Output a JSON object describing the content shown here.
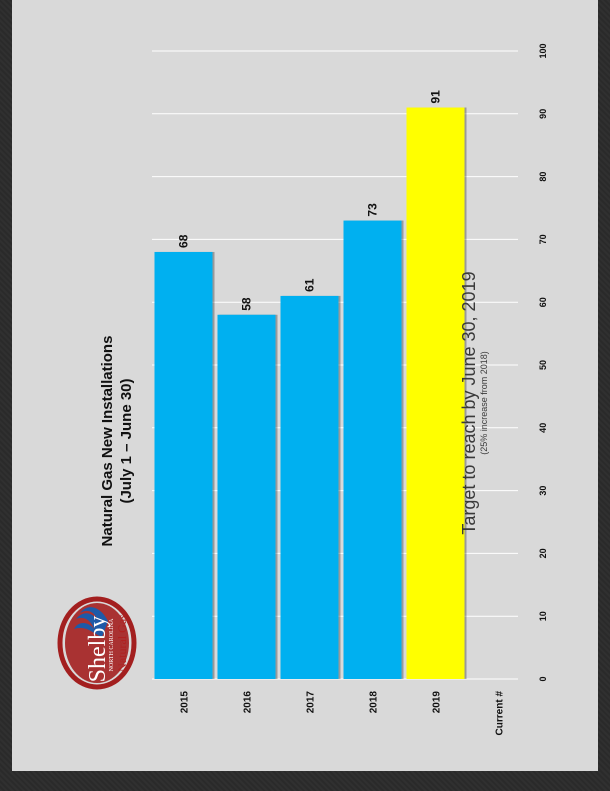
{
  "logo": {
    "brand": "Shelby",
    "state": "NORTH CAROLINA",
    "product": "Natural Gas",
    "colors": {
      "ring": "#a31f1f",
      "flame": "#1e5aa8"
    }
  },
  "colors": {
    "bar": "#00b0f0",
    "target_bar": "#ffff00",
    "slide_background": "#d9d9d9",
    "frame_background": "#2b2b2b"
  },
  "chart_data": {
    "type": "bar",
    "orientation": "horizontal",
    "title": "Natural Gas New Installations",
    "subtitle": "(July 1 – June 30)",
    "categories": [
      "2015",
      "2016",
      "2017",
      "2018",
      "2019",
      "Current #"
    ],
    "values": [
      68,
      58,
      61,
      73,
      91,
      null
    ],
    "data_labels": [
      "68",
      "58",
      "61",
      "73",
      "91",
      ""
    ],
    "xlim": [
      0,
      100
    ],
    "ticks": [
      0,
      10,
      20,
      30,
      40,
      50,
      60,
      70,
      80,
      90,
      100
    ],
    "grid": true,
    "annotation": {
      "text": "Target to reach by June 30, 2019",
      "subtext": "(25% increase from 2018)",
      "category": "2019"
    }
  }
}
